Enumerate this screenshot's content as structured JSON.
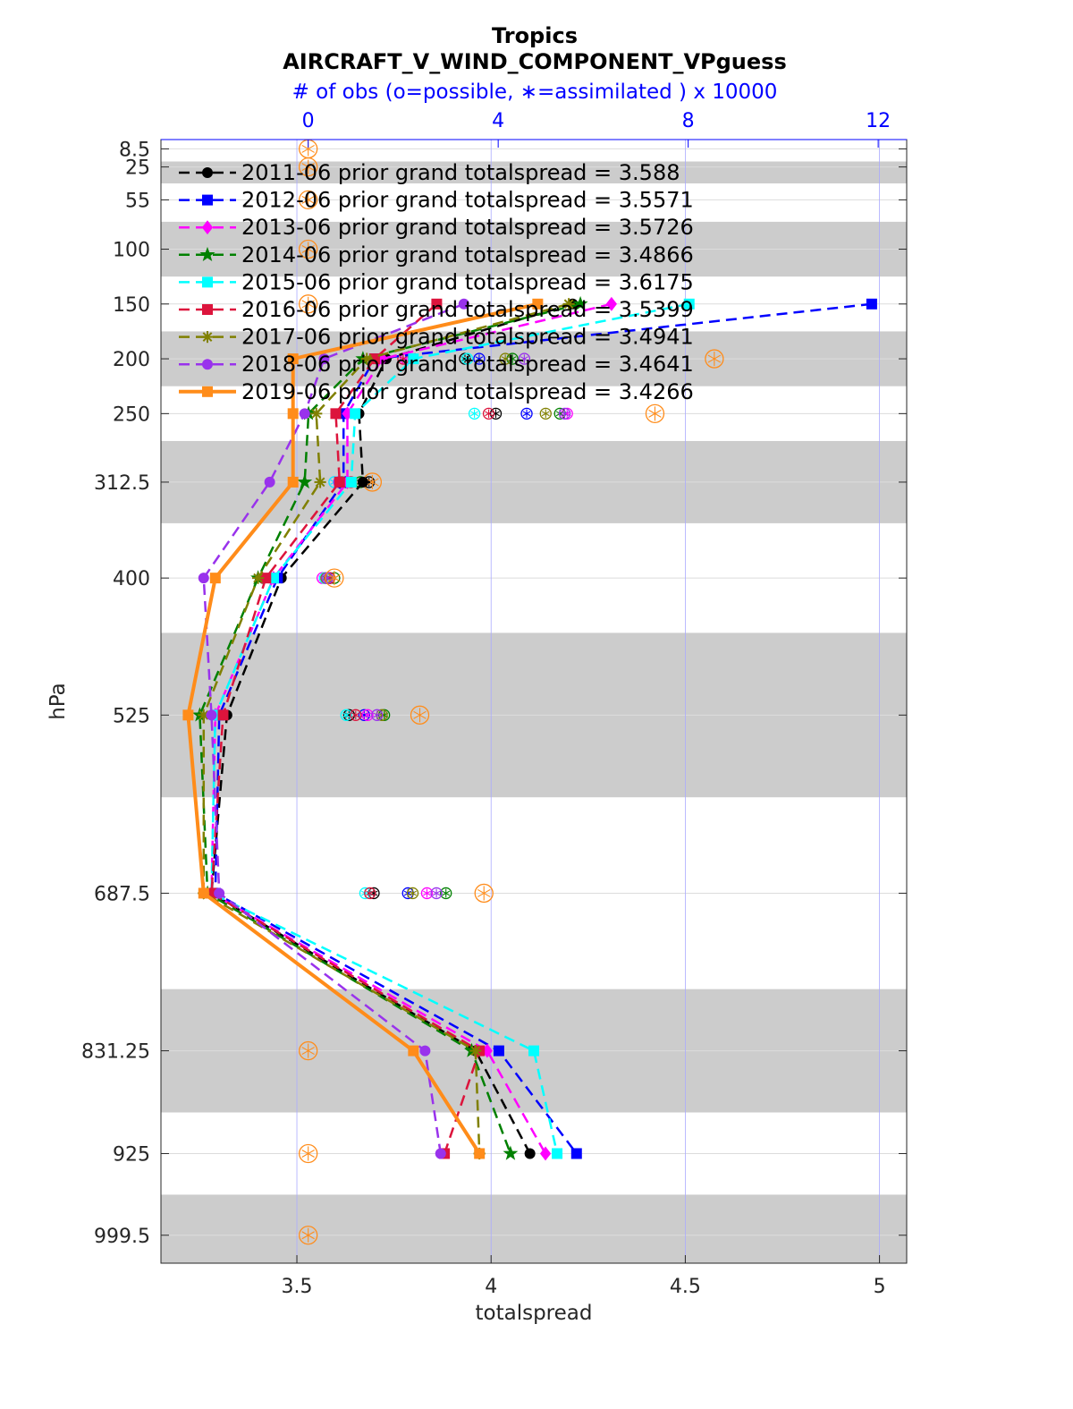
{
  "chart_data": {
    "type": "line",
    "title": "Tropics",
    "subtitle": "AIRCRAFT_V_WIND_COMPONENT_VPguess",
    "top_axis_label": "# of obs (o=possible, ∗=assimilated ) x 10000",
    "xlabel": "totalspread",
    "ylabel": "hPa",
    "xlim": [
      3.15,
      5.07
    ],
    "x_ticks": [
      3.5,
      4,
      4.5,
      5
    ],
    "x_tick_labels": [
      "3.5",
      "4",
      "4.5",
      "5"
    ],
    "top_xlim": [
      -3.1,
      12.6
    ],
    "top_ticks": [
      0,
      4,
      8,
      12
    ],
    "top_tick_labels": [
      "0",
      "4",
      "8",
      "12"
    ],
    "ylim": [
      0,
      1025
    ],
    "y_reversed": true,
    "levels": [
      8.5,
      25,
      55,
      100,
      150,
      200,
      250,
      312.5,
      400,
      525,
      687.5,
      831.25,
      925,
      999.5
    ],
    "level_labels": [
      "8.5",
      "25",
      "55",
      "100",
      "150",
      "200",
      "250",
      "312.5",
      "400",
      "525",
      "687.5",
      "831.25",
      "925",
      "999.5"
    ],
    "shaded_bands": [
      [
        20,
        40
      ],
      [
        75,
        125
      ],
      [
        175,
        225
      ],
      [
        275,
        350
      ],
      [
        450,
        600
      ],
      [
        775,
        887.5
      ],
      [
        962.5,
        1025
      ]
    ],
    "grid": true,
    "legend_location": "upper left",
    "series": [
      {
        "name": "2011-06 prior grand totalspread = 3.588",
        "color": "#000000",
        "marker": "circle",
        "line": "dashed",
        "y": [
          150,
          200,
          250,
          312.5,
          400,
          525,
          687.5,
          831.25,
          925
        ],
        "x": [
          4.21,
          3.73,
          3.66,
          3.67,
          3.46,
          3.32,
          3.28,
          3.96,
          4.1
        ],
        "obs_possible": [
          0.0,
          3.3,
          3.95,
          1.28,
          0.45,
          0.86,
          1.38,
          0.0,
          0.0
        ],
        "obs_assimilated": [
          0.0,
          3.3,
          3.95,
          1.28,
          0.45,
          0.86,
          1.38,
          0.0,
          0.0
        ]
      },
      {
        "name": "2012-06 prior grand totalspread = 3.5571",
        "color": "#0000ff",
        "marker": "square",
        "line": "dashed",
        "y": [
          150,
          200,
          250,
          312.5,
          400,
          525,
          687.5,
          831.25,
          925
        ],
        "x": [
          4.98,
          3.7,
          3.62,
          3.62,
          3.45,
          3.3,
          3.29,
          4.02,
          4.22
        ],
        "obs_possible": [
          0.0,
          3.6,
          4.6,
          0.8,
          0.4,
          1.18,
          2.1,
          0.0,
          0.0
        ],
        "obs_assimilated": [
          0.0,
          3.6,
          4.6,
          0.8,
          0.4,
          1.18,
          2.1,
          0.0,
          0.0
        ]
      },
      {
        "name": "2013-06 prior grand totalspread = 3.5726",
        "color": "#ff00ff",
        "marker": "diamond",
        "line": "dashed",
        "y": [
          150,
          200,
          250,
          312.5,
          400,
          525,
          687.5,
          831.25,
          925
        ],
        "x": [
          4.31,
          3.72,
          3.63,
          3.63,
          3.44,
          3.29,
          3.28,
          3.99,
          4.14
        ],
        "obs_possible": [
          0.0,
          2.05,
          5.45,
          0.55,
          0.3,
          1.25,
          2.5,
          0.0,
          0.0
        ],
        "obs_assimilated": [
          0.0,
          2.05,
          5.45,
          0.55,
          0.3,
          1.25,
          2.5,
          0.0,
          0.0
        ]
      },
      {
        "name": "2014-06 prior grand totalspread = 3.4866",
        "color": "#008000",
        "marker": "star",
        "line": "dashed",
        "y": [
          150,
          200,
          250,
          312.5,
          400,
          525,
          687.5,
          831.25,
          925
        ],
        "x": [
          4.23,
          3.67,
          3.53,
          3.52,
          3.4,
          3.25,
          3.27,
          3.95,
          4.05
        ],
        "obs_possible": [
          0.0,
          4.3,
          5.3,
          1.1,
          0.55,
          1.6,
          2.9,
          0.0,
          0.0
        ],
        "obs_assimilated": [
          0.0,
          4.3,
          5.3,
          1.1,
          0.55,
          1.6,
          2.9,
          0.0,
          0.0
        ]
      },
      {
        "name": "2015-06 prior grand totalspread = 3.6175",
        "color": "#00ffff",
        "marker": "square",
        "line": "dashed",
        "y": [
          150,
          200,
          250,
          312.5,
          400,
          525,
          687.5,
          831.25,
          925
        ],
        "x": [
          4.51,
          3.8,
          3.65,
          3.64,
          3.44,
          3.29,
          3.28,
          4.11,
          4.17
        ],
        "obs_possible": [
          0.0,
          3.35,
          3.5,
          0.55,
          0.35,
          0.8,
          1.2,
          0.0,
          0.0
        ],
        "obs_assimilated": [
          0.0,
          3.35,
          3.5,
          0.55,
          0.35,
          0.8,
          1.2,
          0.0,
          0.0
        ]
      },
      {
        "name": "2016-06 prior grand totalspread = 3.5399",
        "color": "#dc143c",
        "marker": "square",
        "line": "dashed",
        "y": [
          150,
          200,
          250,
          312.5,
          400,
          525,
          687.5,
          831.25,
          925
        ],
        "x": [
          3.86,
          3.7,
          3.6,
          3.61,
          3.42,
          3.31,
          3.28,
          3.97,
          3.88
        ],
        "obs_possible": [
          0.0,
          2.0,
          3.8,
          0.9,
          0.45,
          1.0,
          1.3,
          0.0,
          0.0
        ],
        "obs_assimilated": [
          0.0,
          2.0,
          3.8,
          0.9,
          0.45,
          1.0,
          1.3,
          0.0,
          0.0
        ]
      },
      {
        "name": "2017-06 prior grand totalspread = 3.4941",
        "color": "#808000",
        "marker": "asterisk",
        "line": "dashed",
        "y": [
          150,
          200,
          250,
          312.5,
          400,
          525,
          687.5,
          831.25,
          925
        ],
        "x": [
          4.2,
          3.68,
          3.55,
          3.56,
          3.4,
          3.26,
          3.26,
          3.96,
          3.97
        ],
        "obs_possible": [
          0.0,
          4.15,
          5.0,
          0.7,
          0.38,
          1.55,
          2.2,
          0.0,
          0.0
        ],
        "obs_assimilated": [
          0.0,
          4.15,
          5.0,
          0.7,
          0.38,
          1.55,
          2.2,
          0.0,
          0.0
        ]
      },
      {
        "name": "2018-06 prior grand totalspread = 3.4641",
        "color": "#9932ec",
        "marker": "circle",
        "line": "dashed",
        "y": [
          150,
          200,
          250,
          312.5,
          400,
          525,
          687.5,
          831.25,
          925
        ],
        "x": [
          3.93,
          3.57,
          3.52,
          3.43,
          3.26,
          3.28,
          3.3,
          3.83,
          3.87
        ],
        "obs_possible": [
          0.0,
          4.55,
          5.4,
          0.65,
          0.4,
          1.45,
          2.7,
          0.0,
          0.0
        ],
        "obs_assimilated": [
          0.0,
          4.55,
          5.4,
          0.65,
          0.4,
          1.45,
          2.7,
          0.0,
          0.0
        ]
      },
      {
        "name": "2019-06 prior grand totalspread = 3.4266",
        "color": "#ff8c1a",
        "marker": "square",
        "line": "solid",
        "y": [
          150,
          200,
          250,
          312.5,
          400,
          525,
          687.5,
          831.25,
          925
        ],
        "x": [
          4.12,
          3.49,
          3.49,
          3.49,
          3.29,
          3.22,
          3.26,
          3.8,
          3.97
        ],
        "obs_possible": [
          0.0,
          8.55,
          7.3,
          1.35,
          0.55,
          2.35,
          3.7,
          0.0,
          0.0
        ],
        "obs_assimilated": [
          0.0,
          8.35,
          7.3,
          1.35,
          0.55,
          2.35,
          3.7,
          0.0,
          0.0
        ]
      }
    ],
    "zero_obs_levels": [
      8.5,
      25,
      55,
      100,
      150,
      831.25,
      925,
      999.5
    ]
  }
}
